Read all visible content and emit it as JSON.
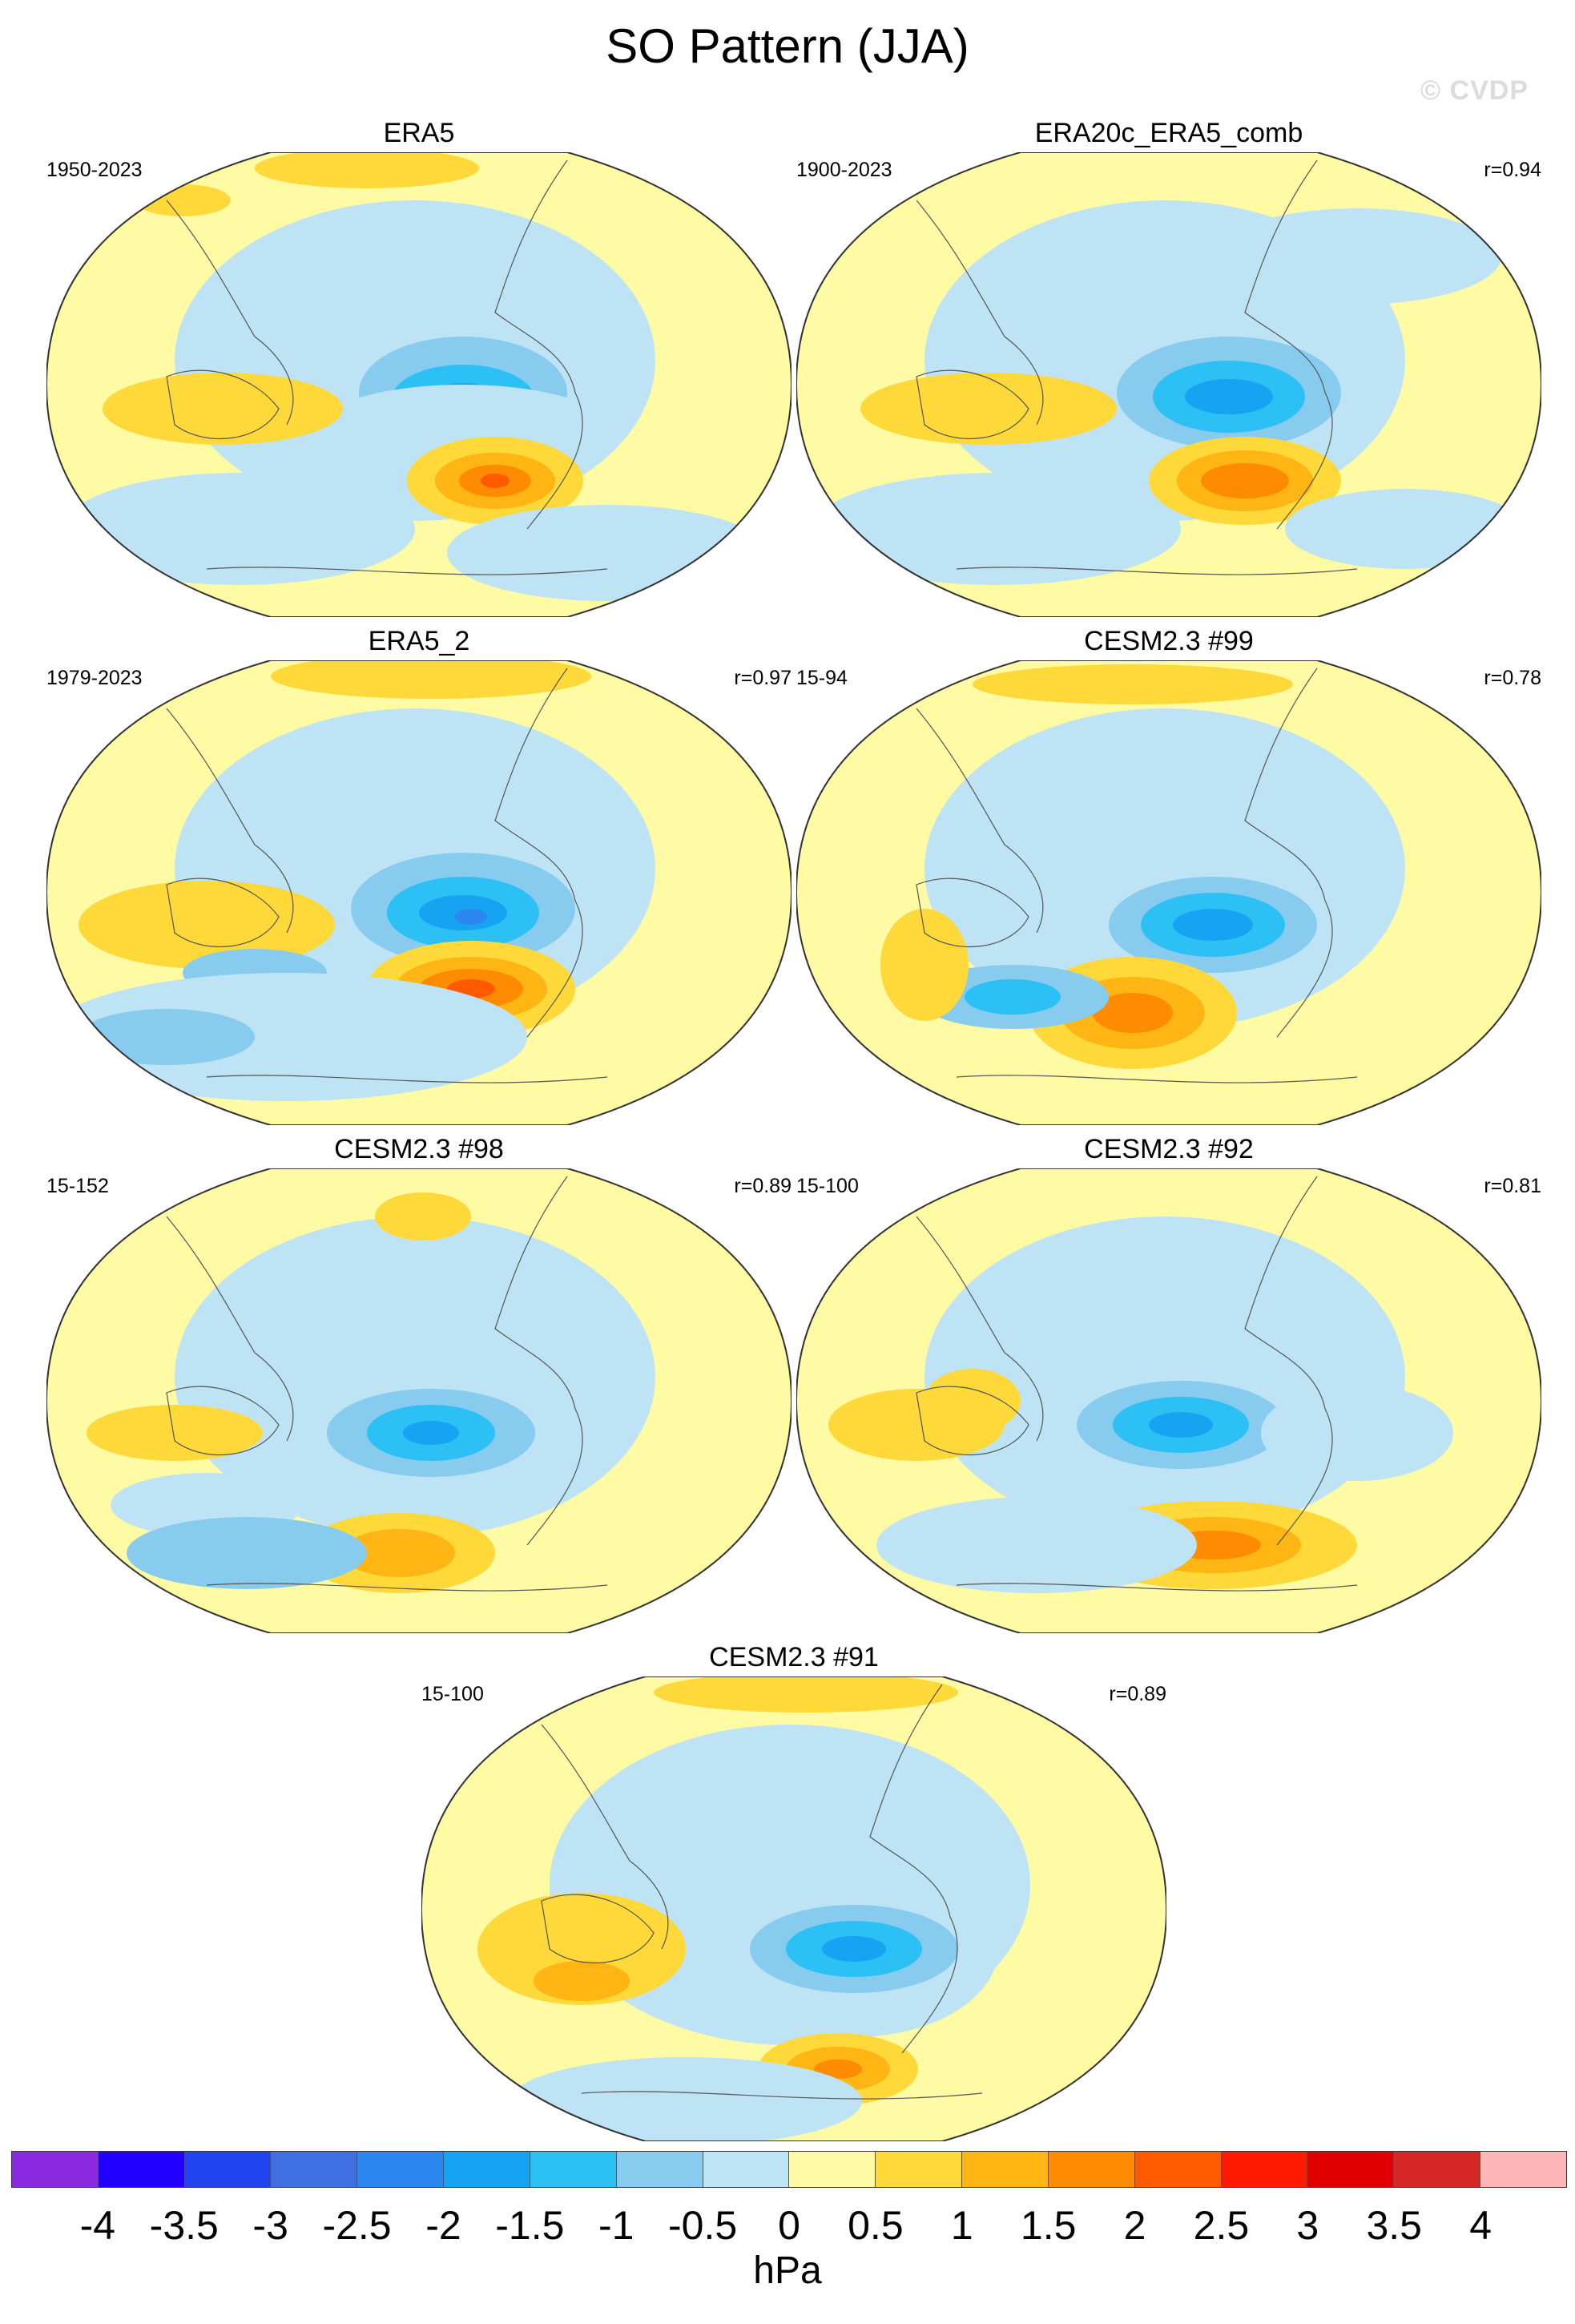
{
  "figure": {
    "title": "SO Pattern (JJA)",
    "watermark": "© CVDP",
    "units": "hPa"
  },
  "panels": [
    {
      "name": "ERA5",
      "years": "1950-2023",
      "corr": ""
    },
    {
      "name": "ERA20c_ERA5_comb",
      "years": "1900-2023",
      "corr": "r=0.94"
    },
    {
      "name": "ERA5_2",
      "years": "1979-2023",
      "corr": "r=0.97"
    },
    {
      "name": "CESM2.3 #99",
      "years": "15-94",
      "corr": "r=0.78"
    },
    {
      "name": "CESM2.3 #98",
      "years": "15-152",
      "corr": "r=0.89"
    },
    {
      "name": "CESM2.3 #92",
      "years": "15-100",
      "corr": "r=0.81"
    },
    {
      "name": "CESM2.3 #91",
      "years": "15-100",
      "corr": "r=0.89"
    }
  ],
  "colorbar": {
    "colors": [
      "#8a2be2",
      "#2200ff",
      "#2244ee",
      "#3f6fe0",
      "#2b86f0",
      "#16a4f2",
      "#2cc0f5",
      "#87cbef",
      "#bde3f4",
      "#fffaa4",
      "#ffd83a",
      "#ffb513",
      "#ff8b00",
      "#ff5a00",
      "#ff1a00",
      "#e00000",
      "#d72626",
      "#ffb6b6"
    ],
    "ticks": [
      "-4",
      "-3.5",
      "-3",
      "-2.5",
      "-2",
      "-1.5",
      "-1",
      "-0.5",
      "0",
      "0.5",
      "1",
      "1.5",
      "2",
      "2.5",
      "3",
      "3.5",
      "4"
    ]
  }
}
